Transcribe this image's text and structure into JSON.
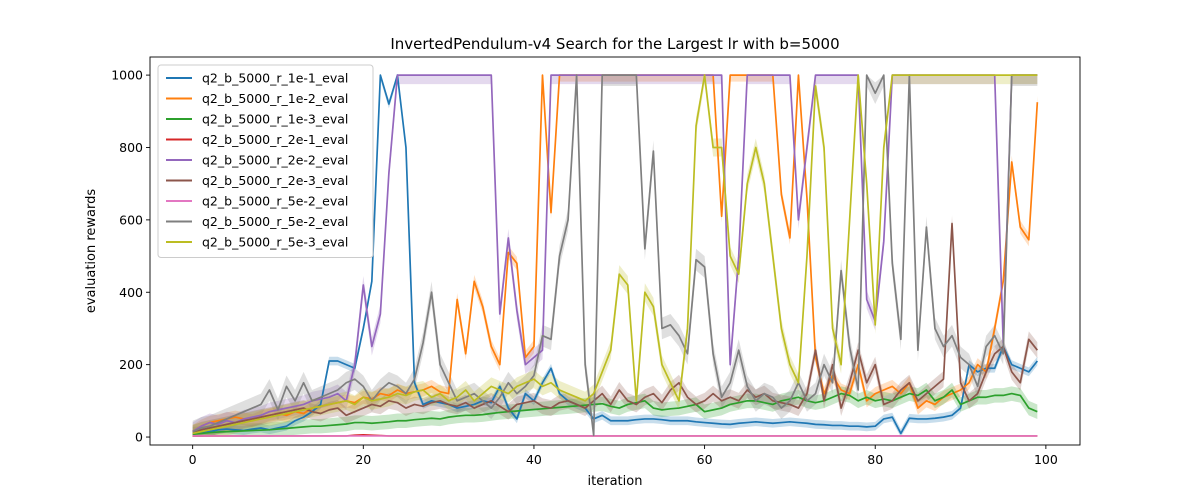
{
  "chart_data": {
    "type": "line",
    "title": "InvertedPendulum-v4 Search for the Largest lr with b=5000",
    "xlabel": "iteration",
    "ylabel": "evaluation rewards",
    "xlim": [
      -5,
      104
    ],
    "ylim": [
      -22,
      1050
    ],
    "xticks": [
      0,
      20,
      40,
      60,
      80,
      100
    ],
    "yticks": [
      0,
      200,
      400,
      600,
      800,
      1000
    ],
    "x_tick_labels": [
      "0",
      "20",
      "40",
      "60",
      "80",
      "100"
    ],
    "y_tick_labels": [
      "0",
      "200",
      "400",
      "600",
      "800",
      "1000"
    ],
    "grid": false,
    "legend_position": "top-left",
    "series": [
      {
        "name": "q2_b_5000_r_1e-1_eval",
        "color": "#1f77b4",
        "values": [
          8,
          12,
          15,
          20,
          22,
          20,
          18,
          22,
          25,
          20,
          25,
          30,
          45,
          55,
          70,
          90,
          210,
          210,
          200,
          190,
          300,
          430,
          1000,
          920,
          1000,
          800,
          150,
          90,
          100,
          95,
          90,
          80,
          85,
          90,
          100,
          95,
          140,
          80,
          50,
          120,
          100,
          150,
          190,
          120,
          100,
          90,
          80,
          50,
          60,
          45,
          45,
          45,
          48,
          50,
          50,
          48,
          45,
          45,
          45,
          42,
          40,
          38,
          36,
          35,
          38,
          40,
          42,
          40,
          38,
          40,
          42,
          40,
          38,
          35,
          34,
          32,
          32,
          30,
          30,
          28,
          30,
          50,
          55,
          10,
          52,
          50,
          50,
          52,
          55,
          60,
          80,
          200,
          180,
          190,
          190,
          250,
          200,
          190,
          180,
          210
        ],
        "band": 12
      },
      {
        "name": "q2_b_5000_r_1e-2_eval",
        "color": "#ff7f0e",
        "values": [
          15,
          30,
          40,
          45,
          50,
          55,
          50,
          45,
          55,
          60,
          65,
          60,
          70,
          65,
          80,
          85,
          90,
          95,
          100,
          95,
          110,
          105,
          120,
          115,
          130,
          120,
          125,
          130,
          140,
          125,
          120,
          380,
          230,
          430,
          360,
          250,
          200,
          510,
          480,
          220,
          250,
          1000,
          620,
          1000,
          1000,
          1000,
          1000,
          1000,
          1000,
          1000,
          1000,
          1000,
          1000,
          1000,
          1000,
          1000,
          1000,
          1000,
          1000,
          1000,
          1000,
          1000,
          610,
          1000,
          1000,
          1000,
          1000,
          1000,
          1000,
          670,
          550,
          1000,
          660,
          220,
          120,
          170,
          130,
          120,
          200,
          100,
          120,
          130,
          140,
          120,
          150,
          80,
          100,
          90,
          110,
          120,
          130,
          150,
          200,
          180,
          300,
          430,
          760,
          580,
          545,
          925
        ],
        "band": 18
      },
      {
        "name": "q2_b_5000_r_1e-3_eval",
        "color": "#2ca02c",
        "values": [
          8,
          10,
          12,
          14,
          15,
          16,
          17,
          18,
          19,
          20,
          22,
          24,
          26,
          28,
          30,
          30,
          32,
          34,
          36,
          40,
          40,
          38,
          40,
          42,
          45,
          45,
          48,
          50,
          52,
          50,
          55,
          58,
          60,
          60,
          62,
          65,
          68,
          70,
          72,
          74,
          76,
          78,
          80,
          82,
          84,
          86,
          88,
          90,
          92,
          85,
          80,
          90,
          95,
          100,
          80,
          75,
          78,
          80,
          85,
          90,
          70,
          75,
          80,
          90,
          95,
          100,
          100,
          95,
          90,
          100,
          105,
          110,
          100,
          95,
          100,
          110,
          120,
          115,
          100,
          110,
          100,
          105,
          100,
          110,
          120,
          115,
          130,
          100,
          110,
          130,
          90,
          100,
          110,
          110,
          115,
          115,
          120,
          115,
          80,
          70
        ],
        "band": 20
      },
      {
        "name": "q2_b_5000_r_2e-1_eval",
        "color": "#d62728",
        "values": [
          3,
          3,
          3,
          3,
          3,
          3,
          3,
          3,
          3,
          3,
          3,
          3,
          3,
          3,
          3,
          3,
          3,
          3,
          3,
          5,
          6,
          5,
          4,
          3,
          3,
          3,
          3,
          3,
          3,
          3,
          3,
          3,
          3,
          3,
          3,
          3,
          3,
          3,
          3,
          3,
          3,
          3,
          3,
          3,
          3,
          3,
          3,
          3,
          3,
          3,
          3,
          3,
          3,
          3,
          3,
          3,
          3,
          3,
          3,
          3,
          3,
          3,
          3,
          3,
          3,
          3,
          3,
          3,
          3,
          3,
          3,
          3,
          3,
          3,
          3,
          3,
          3,
          3,
          3,
          3,
          3,
          3,
          3,
          3,
          3,
          3,
          3,
          3,
          3,
          3,
          3,
          3,
          3,
          3,
          3,
          3,
          3,
          3,
          3,
          3
        ],
        "band": 0
      },
      {
        "name": "q2_b_5000_r_2e-2_eval",
        "color": "#9467bd",
        "values": [
          15,
          30,
          40,
          35,
          45,
          40,
          50,
          55,
          60,
          70,
          75,
          80,
          85,
          90,
          100,
          105,
          110,
          120,
          100,
          200,
          420,
          250,
          340,
          730,
          1000,
          1000,
          1000,
          1000,
          1000,
          1000,
          1000,
          1000,
          1000,
          1000,
          1000,
          1000,
          340,
          550,
          350,
          200,
          220,
          240,
          1000,
          1000,
          1000,
          1000,
          1000,
          1000,
          1000,
          1000,
          1000,
          1000,
          1000,
          1000,
          1000,
          1000,
          1000,
          1000,
          1000,
          1000,
          1000,
          1000,
          1000,
          200,
          500,
          1000,
          1000,
          1000,
          1000,
          1000,
          1000,
          600,
          800,
          1000,
          1000,
          1000,
          1000,
          1000,
          1000,
          380,
          320,
          540,
          1000,
          1000,
          1000,
          1000,
          1000,
          1000,
          1000,
          1000,
          1000,
          1000,
          1000,
          1000,
          1000,
          260,
          1000,
          1000,
          1000,
          1000
        ],
        "band": 25
      },
      {
        "name": "q2_b_5000_r_2e-3_eval",
        "color": "#8c564b",
        "values": [
          10,
          20,
          25,
          30,
          35,
          40,
          45,
          50,
          55,
          60,
          65,
          70,
          75,
          80,
          70,
          65,
          75,
          80,
          60,
          70,
          80,
          90,
          85,
          100,
          95,
          80,
          90,
          85,
          95,
          100,
          90,
          85,
          95,
          80,
          90,
          100,
          85,
          70,
          90,
          95,
          100,
          85,
          80,
          95,
          100,
          90,
          80,
          100,
          120,
          90,
          130,
          100,
          90,
          110,
          120,
          95,
          130,
          150,
          110,
          90,
          100,
          120,
          100,
          110,
          100,
          130,
          110,
          120,
          100,
          95,
          90,
          80,
          120,
          240,
          100,
          200,
          80,
          150,
          240,
          150,
          200,
          90,
          100,
          130,
          150,
          100,
          120,
          140,
          160,
          590,
          150,
          100,
          120,
          180,
          230,
          250,
          180,
          150,
          270,
          240
        ],
        "band": 22
      },
      {
        "name": "q2_b_5000_r_5e-2_eval",
        "color": "#e377c2",
        "values": [
          3,
          3,
          3,
          3,
          3,
          3,
          3,
          3,
          3,
          3,
          3,
          3,
          3,
          3,
          3,
          3,
          3,
          3,
          3,
          3,
          3,
          3,
          3,
          3,
          3,
          3,
          3,
          3,
          3,
          3,
          3,
          3,
          3,
          3,
          3,
          3,
          3,
          3,
          3,
          3,
          3,
          3,
          3,
          3,
          3,
          3,
          3,
          3,
          3,
          3,
          3,
          3,
          3,
          3,
          3,
          3,
          3,
          3,
          3,
          3,
          3,
          3,
          3,
          3,
          3,
          3,
          3,
          3,
          3,
          3,
          3,
          3,
          3,
          3,
          3,
          3,
          3,
          3,
          3,
          3,
          3,
          3,
          3,
          3,
          3,
          3,
          3,
          3,
          3,
          3,
          3,
          3,
          3,
          3,
          3,
          3,
          3,
          3,
          3,
          3
        ],
        "band": 0
      },
      {
        "name": "q2_b_5000_r_5e-2_eval",
        "color": "#7f7f7f",
        "values": [
          15,
          25,
          30,
          40,
          50,
          60,
          70,
          80,
          90,
          130,
          75,
          140,
          100,
          150,
          100,
          110,
          120,
          130,
          150,
          160,
          140,
          100,
          130,
          150,
          140,
          120,
          160,
          260,
          400,
          200,
          150,
          100,
          110,
          120,
          100,
          80,
          110,
          150,
          120,
          140,
          170,
          280,
          270,
          500,
          600,
          1000,
          200,
          5,
          1000,
          1000,
          1000,
          1000,
          1000,
          520,
          790,
          300,
          310,
          280,
          230,
          490,
          470,
          230,
          110,
          150,
          240,
          140,
          100,
          120,
          110,
          80,
          100,
          150,
          100,
          120,
          200,
          150,
          460,
          250,
          130,
          1000,
          950,
          1000,
          480,
          270,
          1000,
          240,
          580,
          300,
          250,
          280,
          220,
          200,
          140,
          250,
          280,
          230,
          1000,
          1000,
          1000,
          1000
        ],
        "band": 30
      },
      {
        "name": "q2_b_5000_r_5e-3_eval",
        "color": "#bcbd22",
        "values": [
          10,
          15,
          20,
          25,
          30,
          35,
          40,
          45,
          50,
          55,
          60,
          65,
          70,
          75,
          80,
          85,
          90,
          95,
          100,
          90,
          110,
          100,
          105,
          110,
          120,
          115,
          125,
          130,
          110,
          120,
          100,
          110,
          130,
          100,
          120,
          140,
          130,
          120,
          140,
          150,
          160,
          140,
          150,
          130,
          120,
          110,
          100,
          120,
          180,
          240,
          450,
          420,
          100,
          400,
          360,
          200,
          150,
          100,
          300,
          860,
          1000,
          800,
          800,
          500,
          450,
          700,
          800,
          700,
          500,
          300,
          200,
          150,
          500,
          970,
          800,
          300,
          200,
          600,
          1000,
          700,
          310,
          800,
          1000,
          1000,
          1000,
          1000,
          1000,
          1000,
          1000,
          1000,
          1000,
          1000,
          1000,
          1000,
          1000,
          1000,
          1000,
          1000,
          1000,
          1000
        ],
        "band": 25
      }
    ]
  }
}
